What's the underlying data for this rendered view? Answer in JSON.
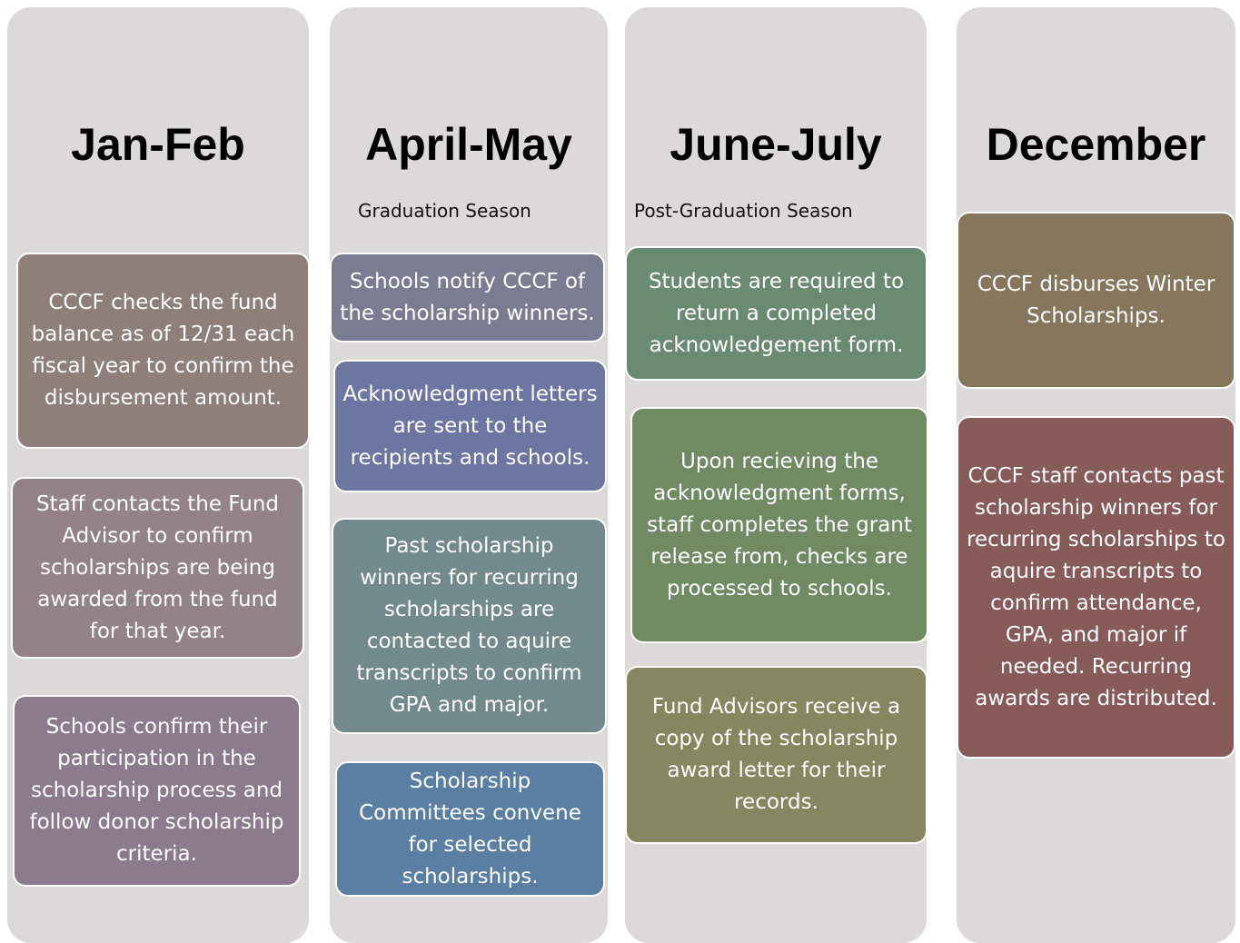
{
  "columns": [
    {
      "title": "Jan-Feb",
      "boxes": [
        "CCCF checks the fund balance as of 12/31 each fiscal year to confirm the disbursement amount.",
        "Staff contacts the Fund Advisor to confirm scholarships are being awarded from the fund for that year.",
        "Schools confirm their participation in the scholarship process and follow donor scholarship criteria."
      ]
    },
    {
      "title": "April-May",
      "subtitle": "Graduation Season",
      "boxes": [
        "Schools notify CCCF of the scholarship winners.",
        "Acknowledgment letters are sent to the recipients and schools.",
        "Past scholarship winners for recurring scholarships are contacted to aquire transcripts to confirm GPA and major.",
        "Scholarship Committees convene for selected scholarships."
      ]
    },
    {
      "title": "June-July",
      "subtitle": "Post-Graduation Season",
      "boxes": [
        "Students are required to return a completed acknowledgement form.",
        "Upon recieving the acknowledgment forms, staff completes the grant release from, checks are processed to schools.",
        "Fund Advisors receive a copy of the scholarship award letter for their records."
      ]
    },
    {
      "title": "December",
      "boxes": [
        "CCCF disburses Winter Scholarships.",
        "CCCF staff contacts past scholarship winners for recurring scholarships to aquire transcripts to confirm attendance, GPA, and major if needed. Recurring awards are distributed."
      ]
    }
  ]
}
